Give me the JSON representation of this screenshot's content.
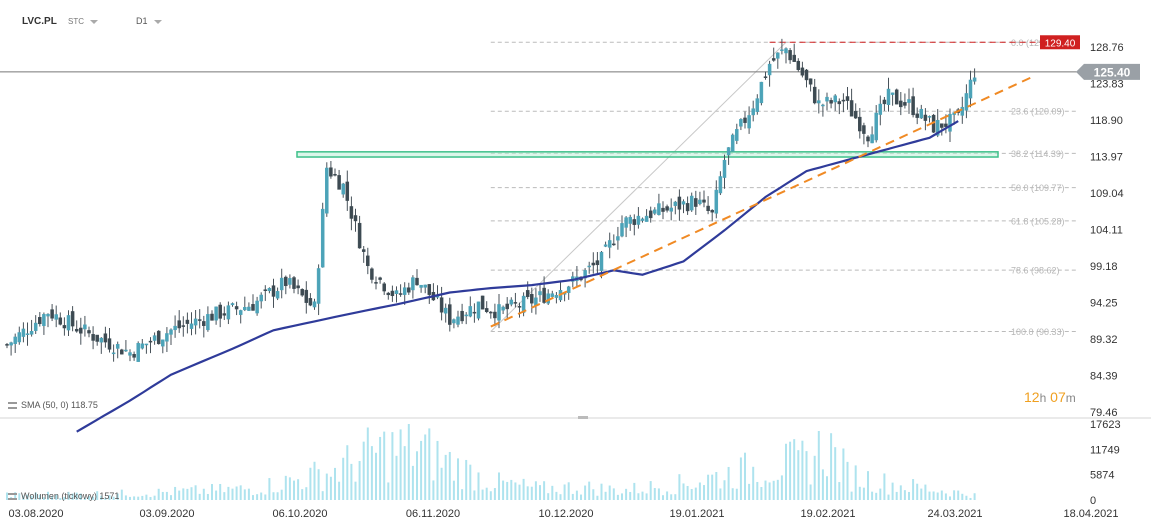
{
  "header": {
    "symbol": "LVC.PL",
    "type": "STC",
    "interval": "D1"
  },
  "colors": {
    "bull": "#4ca3b8",
    "bear": "#3d4a52",
    "wick": "#48525a",
    "sma": "#2f3b9a",
    "trend": "#f08a24",
    "resistance": "#d02020",
    "zone_fill": "#bff0d8",
    "zone_border": "#3ec08a",
    "current_price_bg": "#9aa0a6",
    "volume": "#aee3ee",
    "fib": "#bbbbbb"
  },
  "chart_data": {
    "type": "candlestick",
    "title": "",
    "y_ticks": [
      "128.76",
      "123.83",
      "118.90",
      "113.97",
      "109.04",
      "104.11",
      "99.18",
      "94.25",
      "89.32",
      "84.39",
      "79.46"
    ],
    "volume_ticks": [
      "17623",
      "11749",
      "5874",
      "0"
    ],
    "x_ticks": [
      "03.08.2020",
      "03.09.2020",
      "06.10.2020",
      "06.11.2020",
      "10.12.2020",
      "19.01.2021",
      "19.02.2021",
      "24.03.2021",
      "18.04.2021"
    ],
    "current_price": "125.40",
    "resistance_label": "129.40",
    "resistance": 129.4,
    "zone": [
      113.9,
      114.6
    ],
    "fibonacci": [
      {
        "level": "0.0 (129.40)",
        "price": 129.4
      },
      {
        "level": "23.6 (120.09)",
        "price": 120.09
      },
      {
        "level": "38.2 (114.39)",
        "price": 114.39
      },
      {
        "level": "50.0 (109.77)",
        "price": 109.77
      },
      {
        "level": "61.8 (105.28)",
        "price": 105.28
      },
      {
        "level": "78.6 (98.62)",
        "price": 98.62
      },
      {
        "level": "100.0 (90.33)",
        "price": 90.33
      }
    ],
    "sma_label": "SMA (50, 0) 118.75",
    "volume_label": "Wolumen (tickowy) 1571",
    "countdown": {
      "h": "12",
      "h_unit": "h",
      "m": "07",
      "m_unit": "m"
    },
    "close_anchors": [
      [
        0,
        88.5
      ],
      [
        10,
        93
      ],
      [
        20,
        90
      ],
      [
        30,
        87.5
      ],
      [
        40,
        90.5
      ],
      [
        50,
        92.5
      ],
      [
        60,
        94
      ],
      [
        68,
        97
      ],
      [
        75,
        93.5
      ],
      [
        78,
        112.5
      ],
      [
        82,
        110
      ],
      [
        88,
        99
      ],
      [
        95,
        95
      ],
      [
        100,
        97.5
      ],
      [
        108,
        92
      ],
      [
        115,
        94
      ],
      [
        120,
        93
      ],
      [
        128,
        94.5
      ],
      [
        138,
        97
      ],
      [
        145,
        100
      ],
      [
        150,
        105
      ],
      [
        155,
        106
      ],
      [
        162,
        107
      ],
      [
        168,
        108
      ],
      [
        172,
        106
      ],
      [
        175,
        113.5
      ],
      [
        178,
        117
      ],
      [
        182,
        121
      ],
      [
        186,
        126.5
      ],
      [
        190,
        128.5
      ],
      [
        194,
        125
      ],
      [
        198,
        121
      ],
      [
        204,
        121.5
      ],
      [
        210,
        117
      ],
      [
        215,
        122
      ],
      [
        220,
        121
      ],
      [
        226,
        118
      ],
      [
        232,
        119
      ],
      [
        236,
        125.4
      ]
    ],
    "sma_values": [
      [
        17,
        76.8
      ],
      [
        30,
        81
      ],
      [
        40,
        84.5
      ],
      [
        55,
        88
      ],
      [
        65,
        90.5
      ],
      [
        80,
        92.3
      ],
      [
        95,
        94
      ],
      [
        108,
        95.6
      ],
      [
        118,
        96.2
      ],
      [
        128,
        96.6
      ],
      [
        138,
        97.3
      ],
      [
        148,
        98.6
      ],
      [
        155,
        98.0
      ],
      [
        165,
        99.8
      ],
      [
        175,
        104
      ],
      [
        185,
        108.5
      ],
      [
        195,
        112
      ],
      [
        205,
        113.5
      ],
      [
        215,
        115
      ],
      [
        225,
        116.5
      ],
      [
        232,
        118.75
      ]
    ],
    "trend_line": {
      "from": [
        118,
        91.0
      ],
      "to": [
        250,
        124.7
      ]
    },
    "volume_anchors": [
      [
        0,
        1500
      ],
      [
        30,
        2000
      ],
      [
        60,
        3500
      ],
      [
        70,
        6000
      ],
      [
        80,
        9000
      ],
      [
        90,
        15000
      ],
      [
        100,
        16000
      ],
      [
        110,
        10000
      ],
      [
        118,
        5500
      ],
      [
        130,
        3500
      ],
      [
        140,
        4000
      ],
      [
        150,
        3000
      ],
      [
        165,
        5000
      ],
      [
        180,
        9000
      ],
      [
        195,
        12000
      ],
      [
        200,
        17000
      ],
      [
        205,
        8000
      ],
      [
        215,
        5000
      ],
      [
        225,
        3500
      ],
      [
        236,
        1571
      ]
    ],
    "n_candles": 237,
    "start_date": "2020-08-03"
  }
}
